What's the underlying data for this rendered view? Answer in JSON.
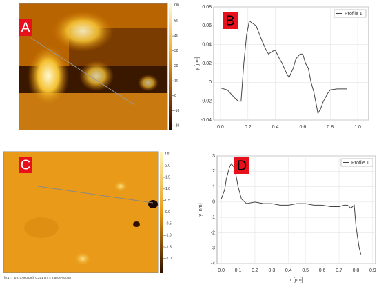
{
  "images": [
    {
      "panel_label": "A",
      "colorbar_unit": "nm",
      "colorbar_ticks": [
        50,
        40,
        30,
        20,
        10,
        0,
        -10,
        -20
      ],
      "colorbar_lim": [
        -25,
        61.7
      ]
    },
    {
      "panel_label": "C",
      "colorbar_unit": "nm",
      "colorbar_ticks": [
        {
          "value": 2,
          "label": "2.0"
        },
        1.5,
        {
          "value": 1,
          "label": "1.0"
        },
        0.5,
        {
          "value": 0,
          "label": "0.0"
        },
        -0.5,
        {
          "value": -1,
          "label": "-1.0"
        },
        -1.5,
        {
          "value": -2,
          "label": "-2.0"
        }
      ],
      "colorbar_lim": [
        -2.6,
        2.6
      ],
      "caption": "[0.177 µm, 0.060 µm]: 0.251 nm ± 2.507e-010 m"
    }
  ],
  "chart_data": [
    {
      "type": "line",
      "panel_label": "B",
      "ylabel": "y [µm]",
      "legend": "upper right",
      "grid": true,
      "x": [
        0,
        0.05,
        0.1,
        0.13,
        0.15,
        0.17,
        0.19,
        0.21,
        0.24,
        0.26,
        0.3,
        0.33,
        0.35,
        0.38,
        0.4,
        0.43,
        0.45,
        0.48,
        0.5,
        0.53,
        0.55,
        0.58,
        0.6,
        0.62,
        0.64,
        0.66,
        0.68,
        0.7,
        0.71,
        0.73,
        0.75,
        0.78,
        0.8,
        0.85,
        0.92
      ],
      "series": [
        {
          "name": "Profile 1",
          "color": "#444444",
          "values": [
            -0.006,
            -0.008,
            -0.016,
            -0.02,
            -0.02,
            0.02,
            0.05,
            0.065,
            0.062,
            0.06,
            0.045,
            0.035,
            0.03,
            0.033,
            0.034,
            0.025,
            0.02,
            0.01,
            0.005,
            0.015,
            0.025,
            0.03,
            0.03,
            0.02,
            0.015,
            0.0,
            -0.01,
            -0.025,
            -0.033,
            -0.028,
            -0.02,
            -0.012,
            -0.008,
            -0.007,
            -0.007
          ]
        }
      ],
      "xlim": [
        -0.05,
        1.08
      ],
      "ylim": [
        -0.04,
        0.08
      ],
      "xticks": [
        {
          "value": 0,
          "label": "0.0"
        },
        0.2,
        0.4,
        0.6,
        0.8,
        {
          "value": 1,
          "label": "1.0"
        }
      ],
      "yticks": [
        -0.04,
        -0.02,
        0,
        0.02,
        0.04,
        0.06,
        0.08
      ]
    },
    {
      "type": "line",
      "panel_label": "D",
      "xlabel": "x [µm]",
      "ylabel": "y [nm]",
      "legend": "upper right",
      "grid": true,
      "x": [
        0,
        0.02,
        0.03,
        0.05,
        0.06,
        0.08,
        0.1,
        0.12,
        0.15,
        0.2,
        0.25,
        0.3,
        0.35,
        0.4,
        0.45,
        0.5,
        0.55,
        0.6,
        0.65,
        0.7,
        0.73,
        0.75,
        0.77,
        0.79,
        0.8,
        0.81,
        0.82,
        0.83
      ],
      "series": [
        {
          "name": "Profile 1",
          "color": "#444444",
          "values": [
            0.2,
            0.8,
            1.5,
            2.3,
            2.5,
            2.2,
            1.0,
            0.2,
            -0.1,
            0.0,
            -0.1,
            -0.1,
            -0.2,
            -0.2,
            -0.1,
            -0.1,
            -0.2,
            -0.2,
            -0.3,
            -0.3,
            -0.2,
            -0.2,
            -0.4,
            -0.2,
            -1.5,
            -2.3,
            -3.0,
            -3.4
          ]
        }
      ],
      "xlim": [
        -0.025,
        0.917
      ],
      "ylim": [
        -4,
        3
      ],
      "xticks": [
        {
          "value": 0,
          "label": "0.0"
        },
        0.1,
        0.2,
        0.3,
        0.4,
        0.5,
        0.6,
        0.7,
        0.8,
        0.9
      ],
      "yticks": [
        -4,
        -3,
        -2,
        -1,
        0,
        1,
        2,
        3
      ]
    }
  ]
}
